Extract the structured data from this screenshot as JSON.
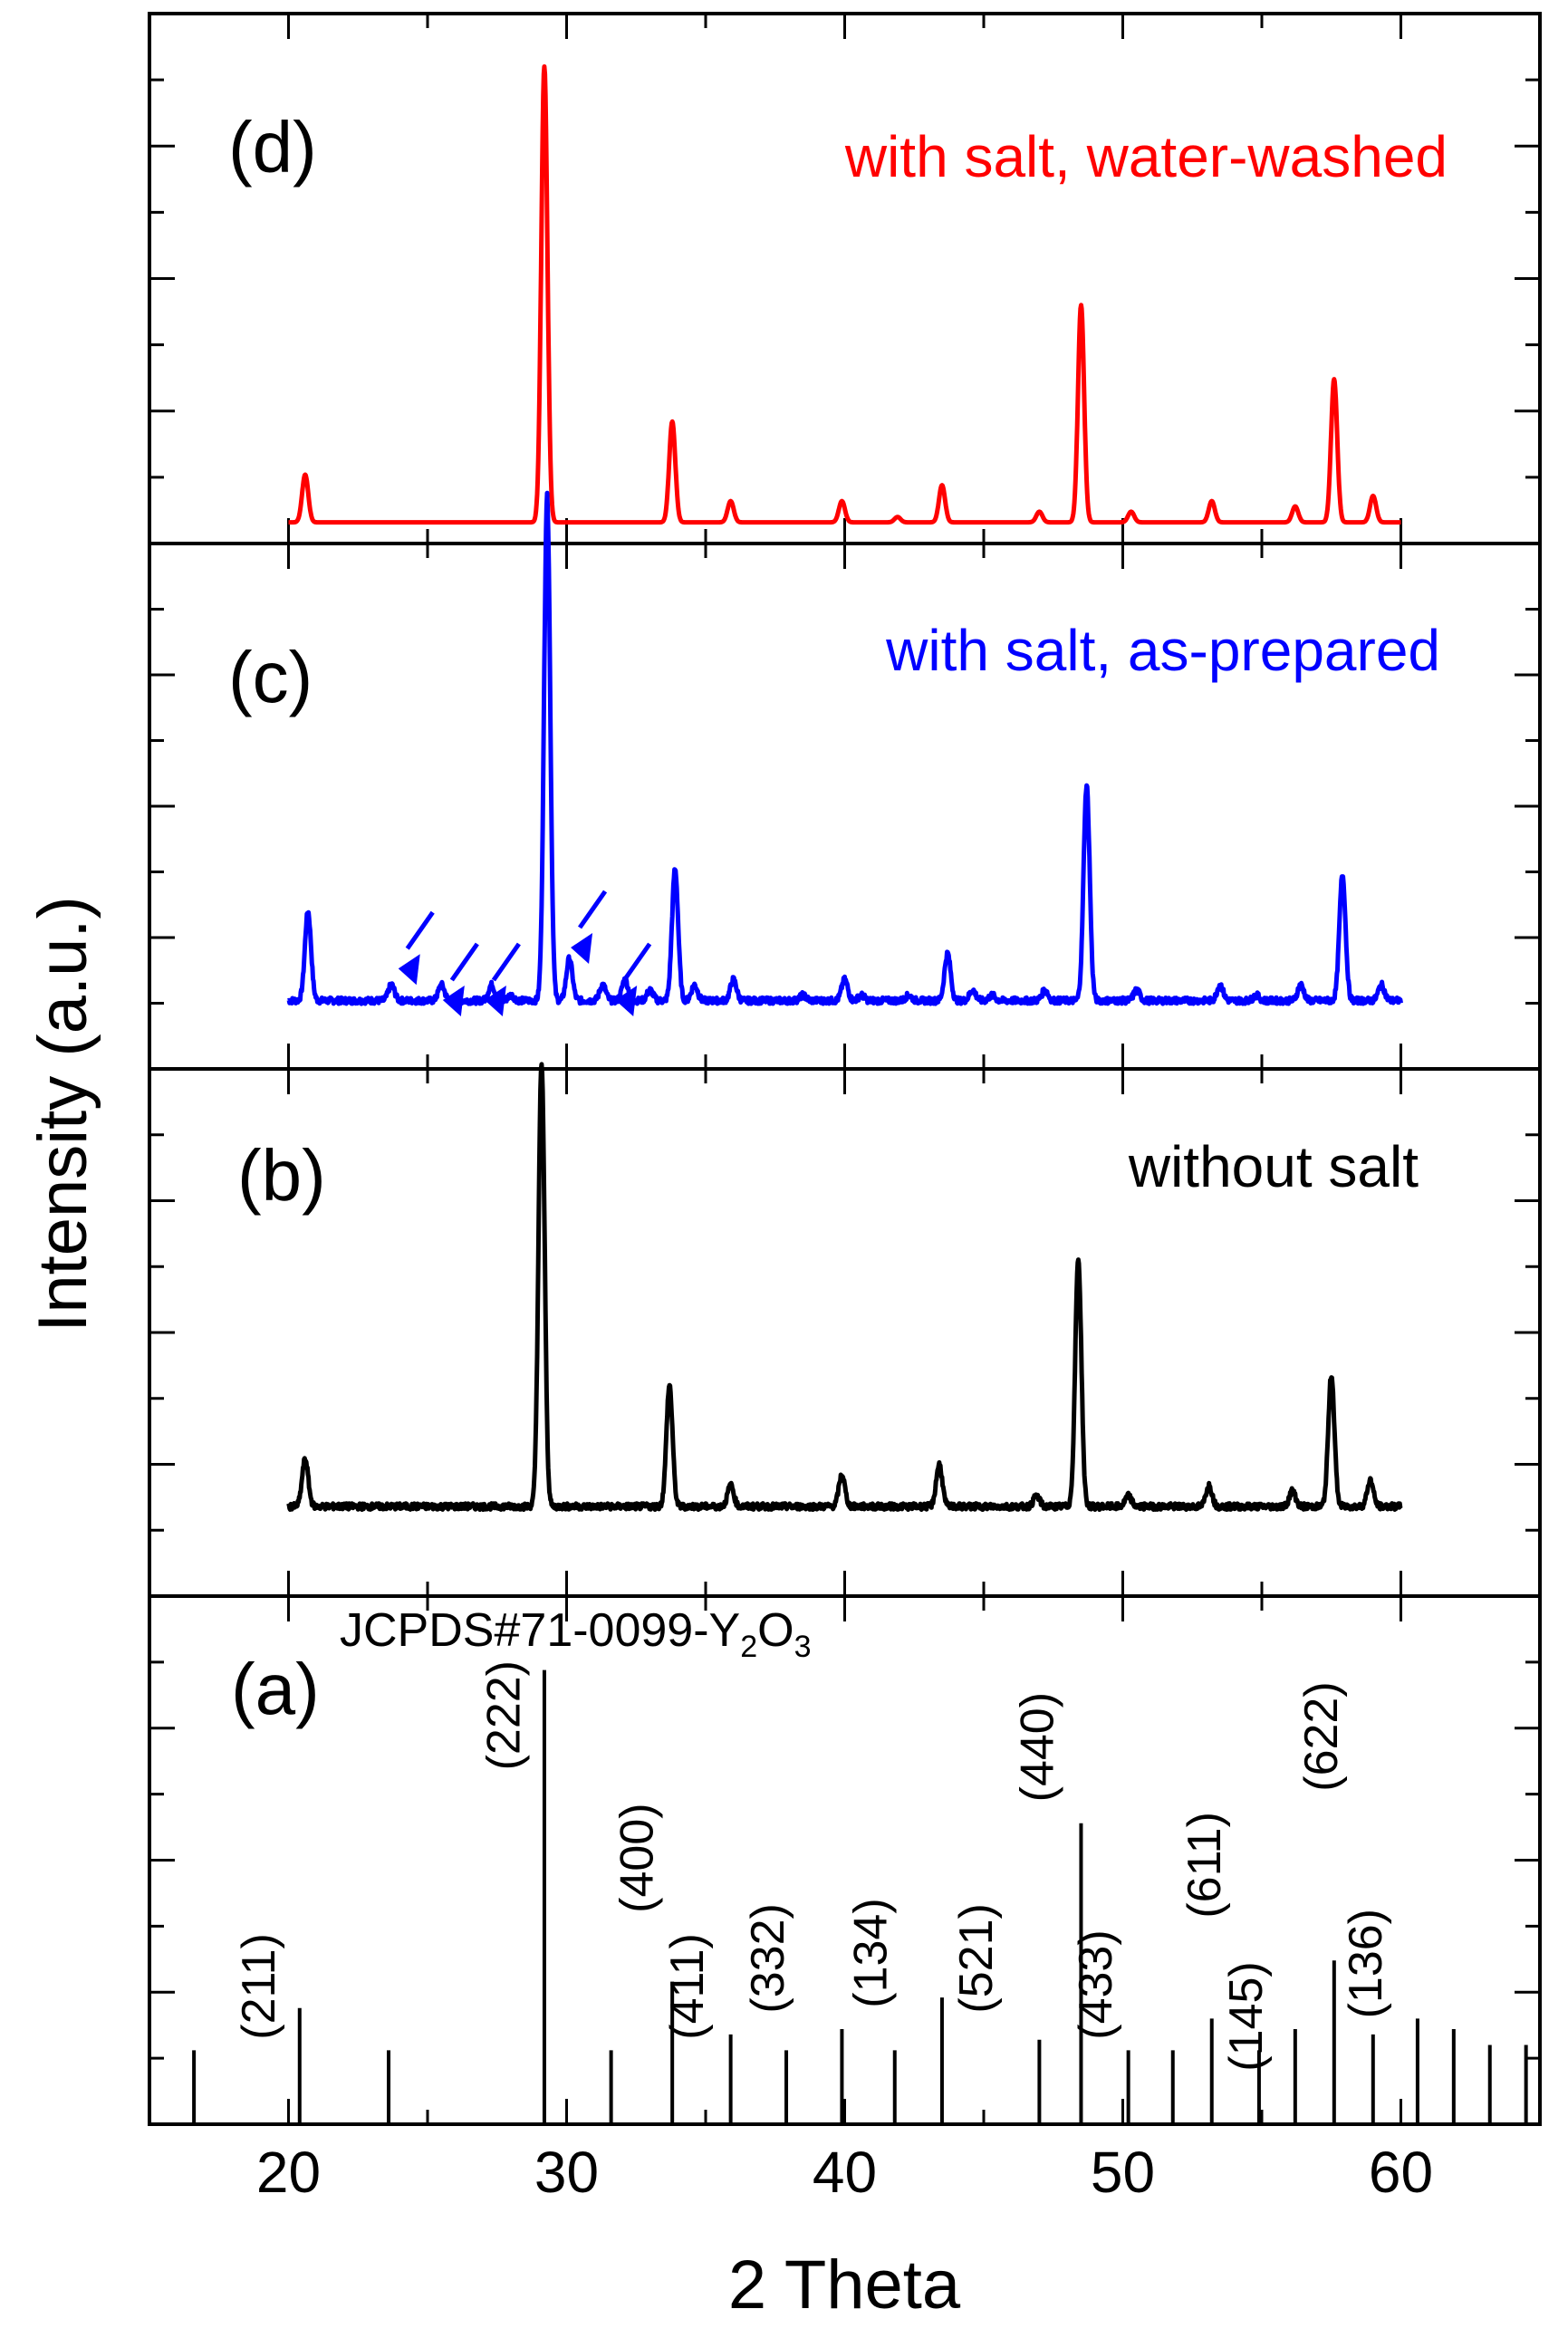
{
  "chart_data": {
    "type": "line",
    "xlabel": "2 Theta",
    "ylabel": "Intensity (a.u.)",
    "xlim": [
      15,
      65
    ],
    "xticks": [
      20,
      30,
      40,
      50,
      60
    ],
    "xtick_labels": [
      "20",
      "30",
      "40",
      "50",
      "60"
    ],
    "panels": [
      {
        "id": "d",
        "panel_label": "(d)",
        "label": "with salt, water-washed",
        "color": "#ff0000",
        "ylim": [
          0,
          1
        ],
        "baseline": 0.04,
        "noise": 0.0,
        "peaks": [
          [
            20.6,
            0.09
          ],
          [
            29.2,
            0.86
          ],
          [
            33.8,
            0.19
          ],
          [
            35.9,
            0.04
          ],
          [
            39.9,
            0.04
          ],
          [
            41.9,
            0.01
          ],
          [
            43.5,
            0.07
          ],
          [
            47.0,
            0.02
          ],
          [
            48.5,
            0.41
          ],
          [
            50.3,
            0.02
          ],
          [
            53.2,
            0.04
          ],
          [
            56.2,
            0.03
          ],
          [
            57.6,
            0.27
          ],
          [
            59.0,
            0.05
          ]
        ]
      },
      {
        "id": "c",
        "panel_label": "(c)",
        "label": "with salt, as-prepared",
        "color": "#0000ff",
        "ylim": [
          0,
          1
        ],
        "baseline": 0.13,
        "noise": 0.006,
        "peaks": [
          [
            20.7,
            0.17
          ],
          [
            23.7,
            0.03
          ],
          [
            25.5,
            0.03
          ],
          [
            27.3,
            0.03
          ],
          [
            28.0,
            0.01
          ],
          [
            29.3,
            0.96
          ],
          [
            30.1,
            0.08
          ],
          [
            31.3,
            0.03
          ],
          [
            32.1,
            0.04
          ],
          [
            33.0,
            0.02
          ],
          [
            33.9,
            0.25
          ],
          [
            34.6,
            0.03
          ],
          [
            36.0,
            0.04
          ],
          [
            38.5,
            0.01
          ],
          [
            40.0,
            0.04
          ],
          [
            40.6,
            0.01
          ],
          [
            42.3,
            0.01
          ],
          [
            43.7,
            0.09
          ],
          [
            44.6,
            0.02
          ],
          [
            45.3,
            0.01
          ],
          [
            47.2,
            0.02
          ],
          [
            48.7,
            0.41
          ],
          [
            50.5,
            0.02
          ],
          [
            53.5,
            0.03
          ],
          [
            54.8,
            0.01
          ],
          [
            56.4,
            0.03
          ],
          [
            57.9,
            0.24
          ],
          [
            59.3,
            0.03
          ]
        ]
      },
      {
        "id": "b",
        "panel_label": "(b)",
        "label": "without salt",
        "color": "#000000",
        "ylim": [
          0,
          1
        ],
        "baseline": 0.17,
        "noise": 0.006,
        "peaks": [
          [
            20.6,
            0.09
          ],
          [
            29.1,
            0.84
          ],
          [
            33.7,
            0.23
          ],
          [
            35.9,
            0.04
          ],
          [
            39.9,
            0.06
          ],
          [
            43.4,
            0.08
          ],
          [
            46.9,
            0.02
          ],
          [
            48.4,
            0.47
          ],
          [
            50.2,
            0.02
          ],
          [
            53.1,
            0.04
          ],
          [
            56.1,
            0.03
          ],
          [
            57.5,
            0.25
          ],
          [
            58.9,
            0.05
          ]
        ]
      }
    ],
    "reference": {
      "id": "a",
      "panel_label": "(a)",
      "title": "JCPDS#71-0099-Y",
      "title_sub1": "2",
      "title_mid": "O",
      "title_sub2": "3",
      "color": "#000000",
      "ylim": [
        0,
        1
      ],
      "lines": [
        {
          "x": 16.6,
          "h": 0.14
        },
        {
          "x": 20.4,
          "h": 0.22
        },
        {
          "x": 23.6,
          "h": 0.14
        },
        {
          "x": 29.2,
          "h": 0.86
        },
        {
          "x": 31.6,
          "h": 0.14
        },
        {
          "x": 33.8,
          "h": 0.27
        },
        {
          "x": 35.9,
          "h": 0.17
        },
        {
          "x": 37.9,
          "h": 0.14
        },
        {
          "x": 39.9,
          "h": 0.18
        },
        {
          "x": 41.8,
          "h": 0.14
        },
        {
          "x": 43.5,
          "h": 0.24
        },
        {
          "x": 47.0,
          "h": 0.16
        },
        {
          "x": 48.5,
          "h": 0.57
        },
        {
          "x": 50.2,
          "h": 0.14
        },
        {
          "x": 51.8,
          "h": 0.14
        },
        {
          "x": 53.2,
          "h": 0.2
        },
        {
          "x": 54.9,
          "h": 0.14
        },
        {
          "x": 56.2,
          "h": 0.18
        },
        {
          "x": 57.6,
          "h": 0.31
        },
        {
          "x": 59.0,
          "h": 0.17
        },
        {
          "x": 60.6,
          "h": 0.2
        },
        {
          "x": 61.9,
          "h": 0.18
        },
        {
          "x": 63.2,
          "h": 0.15
        },
        {
          "x": 64.5,
          "h": 0.15
        }
      ],
      "hkl_labels": [
        {
          "text": "(211)",
          "x": 19.5,
          "y": 0.16
        },
        {
          "text": "(222)",
          "x": 28.3,
          "y": 0.67
        },
        {
          "text": "(400)",
          "x": 33.1,
          "y": 0.4
        },
        {
          "text": "(411)",
          "x": 34.9,
          "y": 0.16
        },
        {
          "text": "(332)",
          "x": 37.8,
          "y": 0.21
        },
        {
          "text": "(134)",
          "x": 41.5,
          "y": 0.22
        },
        {
          "text": "(521)",
          "x": 45.3,
          "y": 0.21
        },
        {
          "text": "(440)",
          "x": 47.5,
          "y": 0.61
        },
        {
          "text": "(433)",
          "x": 49.6,
          "y": 0.16
        },
        {
          "text": "(611)",
          "x": 53.5,
          "y": 0.39
        },
        {
          "text": "(145)",
          "x": 55.0,
          "y": 0.1
        },
        {
          "text": "(622)",
          "x": 57.7,
          "y": 0.63
        },
        {
          "text": "(136)",
          "x": 59.3,
          "y": 0.2
        }
      ]
    },
    "arrows_in_panel_c": [
      {
        "x": 24.6,
        "y": 0.16
      },
      {
        "x": 26.2,
        "y": 0.1
      },
      {
        "x": 27.7,
        "y": 0.1
      },
      {
        "x": 30.8,
        "y": 0.2
      },
      {
        "x": 32.4,
        "y": 0.1
      }
    ]
  }
}
